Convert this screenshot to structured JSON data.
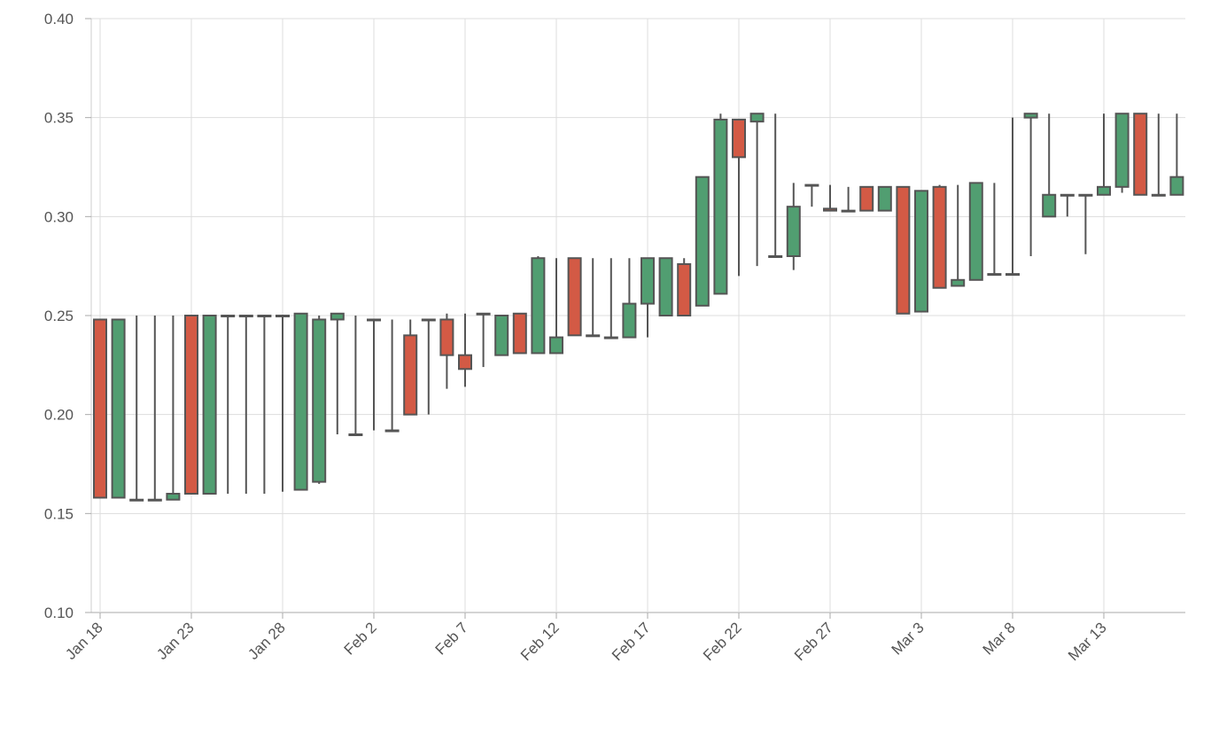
{
  "chart_data": {
    "type": "candlestick",
    "title": "",
    "xlabel": "",
    "ylabel": "",
    "ylim": [
      0.1,
      0.4
    ],
    "y_ticks": [
      "0.10",
      "0.15",
      "0.20",
      "0.25",
      "0.30",
      "0.35",
      "0.40"
    ],
    "x_ticks": [
      "Jan 18",
      "Jan 23",
      "Jan 28",
      "Feb 2",
      "Feb 7",
      "Feb 12",
      "Feb 17",
      "Feb 22",
      "Feb 27",
      "Mar 3",
      "Mar 8",
      "Mar 13"
    ],
    "grid": true,
    "colors": {
      "up": "#519e71",
      "down": "#d35a45",
      "outline": "#555555",
      "grid": "#dddddd"
    },
    "dates": [
      "Jan 18",
      "Jan 19",
      "Jan 20",
      "Jan 21",
      "Jan 22",
      "Jan 23",
      "Jan 24",
      "Jan 25",
      "Jan 26",
      "Jan 27",
      "Jan 28",
      "Jan 29",
      "Jan 30",
      "Jan 31",
      "Feb 1",
      "Feb 2",
      "Feb 3",
      "Feb 4",
      "Feb 5",
      "Feb 6",
      "Feb 7",
      "Feb 8",
      "Feb 9",
      "Feb 10",
      "Feb 11",
      "Feb 12",
      "Feb 13",
      "Feb 14",
      "Feb 15",
      "Feb 16",
      "Feb 17",
      "Feb 18",
      "Feb 19",
      "Feb 20",
      "Feb 21",
      "Feb 22",
      "Feb 23",
      "Feb 24",
      "Feb 25",
      "Feb 26",
      "Feb 27",
      "Feb 28",
      "Feb 29",
      "Mar 1",
      "Mar 2",
      "Mar 3",
      "Mar 4",
      "Mar 5",
      "Mar 6",
      "Mar 7",
      "Mar 8",
      "Mar 9",
      "Mar 10",
      "Mar 11",
      "Mar 12",
      "Mar 13",
      "Mar 14",
      "Mar 15",
      "Mar 16",
      "Mar 17"
    ],
    "ohlc": [
      [
        0.248,
        0.248,
        0.158,
        0.158
      ],
      [
        0.158,
        0.248,
        0.158,
        0.248
      ],
      [
        0.157,
        0.25,
        0.157,
        0.157
      ],
      [
        0.157,
        0.25,
        0.157,
        0.157
      ],
      [
        0.157,
        0.25,
        0.157,
        0.16
      ],
      [
        0.25,
        0.25,
        0.16,
        0.16
      ],
      [
        0.16,
        0.25,
        0.16,
        0.25
      ],
      [
        0.25,
        0.25,
        0.16,
        0.25
      ],
      [
        0.25,
        0.25,
        0.16,
        0.25
      ],
      [
        0.25,
        0.25,
        0.16,
        0.25
      ],
      [
        0.25,
        0.25,
        0.161,
        0.25
      ],
      [
        0.162,
        0.251,
        0.162,
        0.251
      ],
      [
        0.166,
        0.25,
        0.165,
        0.248
      ],
      [
        0.248,
        0.251,
        0.19,
        0.251
      ],
      [
        0.19,
        0.25,
        0.19,
        0.19
      ],
      [
        0.248,
        0.248,
        0.192,
        0.248
      ],
      [
        0.192,
        0.248,
        0.192,
        0.192
      ],
      [
        0.24,
        0.248,
        0.2,
        0.2
      ],
      [
        0.248,
        0.248,
        0.2,
        0.248
      ],
      [
        0.248,
        0.251,
        0.213,
        0.23
      ],
      [
        0.23,
        0.251,
        0.214,
        0.223
      ],
      [
        0.251,
        0.251,
        0.224,
        0.251
      ],
      [
        0.23,
        0.25,
        0.23,
        0.25
      ],
      [
        0.251,
        0.251,
        0.231,
        0.231
      ],
      [
        0.231,
        0.28,
        0.231,
        0.279
      ],
      [
        0.231,
        0.279,
        0.231,
        0.239
      ],
      [
        0.279,
        0.279,
        0.24,
        0.24
      ],
      [
        0.24,
        0.279,
        0.24,
        0.24
      ],
      [
        0.239,
        0.279,
        0.239,
        0.239
      ],
      [
        0.239,
        0.279,
        0.239,
        0.256
      ],
      [
        0.256,
        0.279,
        0.239,
        0.279
      ],
      [
        0.25,
        0.279,
        0.25,
        0.279
      ],
      [
        0.276,
        0.279,
        0.25,
        0.25
      ],
      [
        0.255,
        0.32,
        0.255,
        0.32
      ],
      [
        0.261,
        0.352,
        0.261,
        0.349
      ],
      [
        0.349,
        0.349,
        0.27,
        0.33
      ],
      [
        0.348,
        0.352,
        0.275,
        0.352
      ],
      [
        0.28,
        0.352,
        0.28,
        0.28
      ],
      [
        0.28,
        0.317,
        0.273,
        0.305
      ],
      [
        0.316,
        0.316,
        0.305,
        0.316
      ],
      [
        0.304,
        0.316,
        0.304,
        0.303
      ],
      [
        0.303,
        0.315,
        0.303,
        0.303
      ],
      [
        0.315,
        0.315,
        0.303,
        0.303
      ],
      [
        0.303,
        0.315,
        0.303,
        0.315
      ],
      [
        0.315,
        0.315,
        0.251,
        0.251
      ],
      [
        0.252,
        0.313,
        0.252,
        0.313
      ],
      [
        0.315,
        0.316,
        0.264,
        0.264
      ],
      [
        0.265,
        0.316,
        0.265,
        0.268
      ],
      [
        0.268,
        0.317,
        0.268,
        0.317
      ],
      [
        0.271,
        0.317,
        0.271,
        0.271
      ],
      [
        0.271,
        0.35,
        0.271,
        0.271
      ],
      [
        0.35,
        0.352,
        0.28,
        0.352
      ],
      [
        0.3,
        0.352,
        0.3,
        0.311
      ],
      [
        0.311,
        0.311,
        0.3,
        0.311
      ],
      [
        0.311,
        0.311,
        0.281,
        0.311
      ],
      [
        0.311,
        0.352,
        0.311,
        0.315
      ],
      [
        0.315,
        0.352,
        0.312,
        0.352
      ],
      [
        0.352,
        0.352,
        0.311,
        0.311
      ],
      [
        0.311,
        0.352,
        0.311,
        0.311
      ],
      [
        0.311,
        0.352,
        0.311,
        0.32
      ]
    ]
  }
}
